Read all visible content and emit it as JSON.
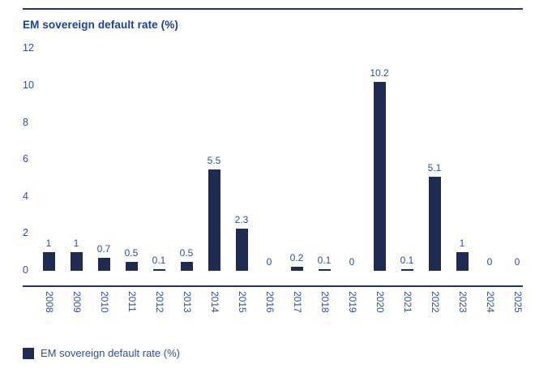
{
  "chart": {
    "title": "EM sovereign default rate (%)",
    "legend_label": "EM sovereign default rate (%)",
    "colors": {
      "bar": "#1e2c55",
      "axis_line": "#26355e",
      "label_text": "#2e4e9e",
      "title_text": "#1f3e96",
      "background": "#ffffff"
    }
  },
  "chart_data": {
    "type": "bar",
    "title": "EM sovereign default rate (%)",
    "categories": [
      "2008",
      "2009",
      "2010",
      "2011",
      "2012",
      "2013",
      "2014",
      "2015",
      "2016",
      "2017",
      "2018",
      "2019",
      "2020",
      "2021",
      "2022",
      "2023",
      "2024",
      "2025"
    ],
    "values": [
      1,
      1,
      0.7,
      0.5,
      0.1,
      0.5,
      5.5,
      2.3,
      0,
      0.2,
      0.1,
      0,
      10.2,
      0.1,
      5.1,
      1,
      0,
      0
    ],
    "data_labels": [
      "1",
      "1",
      "0.7",
      "0.5",
      "0.1",
      "0.5",
      "5.5",
      "2.3",
      "0",
      "0.2",
      "0.1",
      "0",
      "10.2",
      "0.1",
      "5.1",
      "1",
      "0",
      "0"
    ],
    "xlabel": "",
    "ylabel": "",
    "ylim": [
      0,
      12
    ],
    "yticks": [
      0,
      2,
      4,
      6,
      8,
      10,
      12
    ],
    "grid": false,
    "legend": [
      "EM sovereign default rate (%)"
    ],
    "legend_position": "bottom-left",
    "x_tick_rotation": 90
  }
}
